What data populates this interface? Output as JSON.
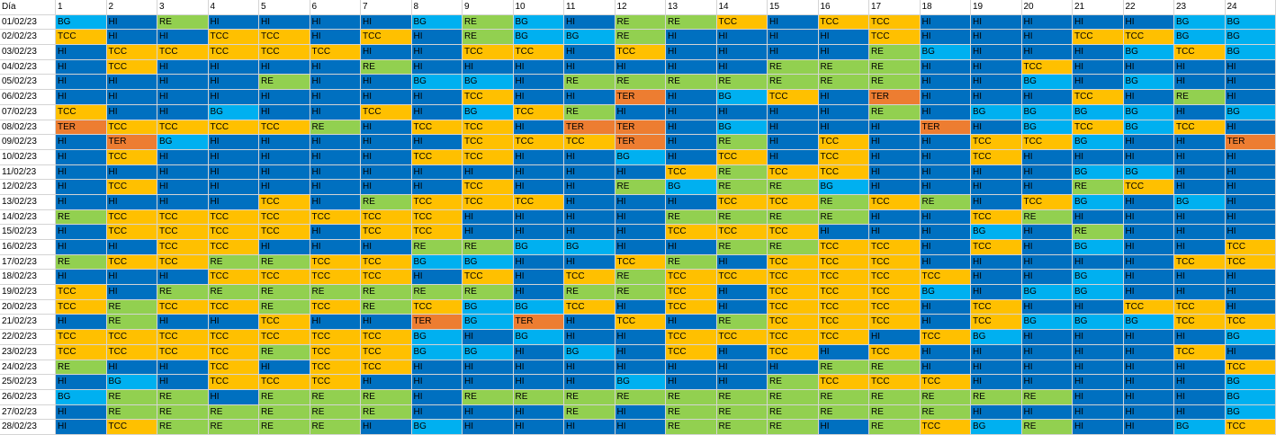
{
  "chart_data": {
    "type": "heatmap",
    "corner_label": "Día",
    "columns": [
      "1",
      "2",
      "3",
      "4",
      "5",
      "6",
      "7",
      "8",
      "9",
      "10",
      "11",
      "12",
      "13",
      "14",
      "15",
      "16",
      "17",
      "18",
      "19",
      "20",
      "21",
      "22",
      "23",
      "24"
    ],
    "colors": {
      "HI": "#0070c0",
      "BG": "#00b0f0",
      "TCC": "#ffc000",
      "RE": "#92d050",
      "TER": "#ed7d31"
    },
    "rows": [
      {
        "date": "01/02/23",
        "values": [
          "BG",
          "HI",
          "RE",
          "HI",
          "HI",
          "HI",
          "HI",
          "BG",
          "RE",
          "BG",
          "HI",
          "RE",
          "RE",
          "TCC",
          "HI",
          "TCC",
          "TCC",
          "HI",
          "HI",
          "HI",
          "HI",
          "HI",
          "BG",
          "BG"
        ]
      },
      {
        "date": "02/02/23",
        "values": [
          "TCC",
          "HI",
          "HI",
          "TCC",
          "TCC",
          "HI",
          "TCC",
          "HI",
          "RE",
          "BG",
          "BG",
          "RE",
          "HI",
          "HI",
          "HI",
          "HI",
          "TCC",
          "HI",
          "HI",
          "HI",
          "TCC",
          "TCC",
          "BG",
          "BG"
        ]
      },
      {
        "date": "03/02/23",
        "values": [
          "HI",
          "TCC",
          "TCC",
          "TCC",
          "TCC",
          "TCC",
          "HI",
          "HI",
          "TCC",
          "TCC",
          "HI",
          "TCC",
          "HI",
          "HI",
          "HI",
          "HI",
          "RE",
          "BG",
          "HI",
          "HI",
          "HI",
          "BG",
          "TCC",
          "BG"
        ]
      },
      {
        "date": "04/02/23",
        "values": [
          "HI",
          "TCC",
          "HI",
          "HI",
          "HI",
          "HI",
          "RE",
          "HI",
          "HI",
          "HI",
          "HI",
          "HI",
          "HI",
          "HI",
          "RE",
          "RE",
          "RE",
          "HI",
          "HI",
          "TCC",
          "HI",
          "HI",
          "HI",
          "HI"
        ]
      },
      {
        "date": "05/02/23",
        "values": [
          "HI",
          "HI",
          "HI",
          "HI",
          "RE",
          "HI",
          "HI",
          "BG",
          "BG",
          "HI",
          "RE",
          "RE",
          "RE",
          "RE",
          "RE",
          "RE",
          "RE",
          "HI",
          "HI",
          "BG",
          "HI",
          "BG",
          "HI",
          "HI"
        ]
      },
      {
        "date": "06/02/23",
        "values": [
          "HI",
          "HI",
          "HI",
          "HI",
          "HI",
          "HI",
          "HI",
          "HI",
          "TCC",
          "HI",
          "HI",
          "TER",
          "HI",
          "BG",
          "TCC",
          "HI",
          "TER",
          "HI",
          "HI",
          "HI",
          "TCC",
          "HI",
          "RE",
          "HI"
        ]
      },
      {
        "date": "07/02/23",
        "values": [
          "TCC",
          "HI",
          "HI",
          "BG",
          "HI",
          "HI",
          "TCC",
          "HI",
          "BG",
          "TCC",
          "RE",
          "HI",
          "HI",
          "HI",
          "HI",
          "HI",
          "RE",
          "HI",
          "BG",
          "BG",
          "BG",
          "BG",
          "HI",
          "BG"
        ]
      },
      {
        "date": "08/02/23",
        "values": [
          "TER",
          "TCC",
          "TCC",
          "TCC",
          "TCC",
          "RE",
          "HI",
          "TCC",
          "TCC",
          "HI",
          "TER",
          "TER",
          "HI",
          "BG",
          "HI",
          "HI",
          "HI",
          "TER",
          "HI",
          "BG",
          "TCC",
          "BG",
          "TCC",
          "HI"
        ]
      },
      {
        "date": "09/02/23",
        "values": [
          "HI",
          "TER",
          "BG",
          "HI",
          "HI",
          "HI",
          "HI",
          "HI",
          "TCC",
          "TCC",
          "TCC",
          "TER",
          "HI",
          "RE",
          "HI",
          "TCC",
          "HI",
          "HI",
          "TCC",
          "TCC",
          "BG",
          "HI",
          "HI",
          "TER"
        ]
      },
      {
        "date": "10/02/23",
        "values": [
          "HI",
          "TCC",
          "HI",
          "HI",
          "HI",
          "HI",
          "HI",
          "TCC",
          "TCC",
          "HI",
          "HI",
          "BG",
          "HI",
          "TCC",
          "HI",
          "TCC",
          "HI",
          "HI",
          "TCC",
          "HI",
          "HI",
          "HI",
          "HI",
          "HI"
        ]
      },
      {
        "date": "11/02/23",
        "values": [
          "HI",
          "HI",
          "HI",
          "HI",
          "HI",
          "HI",
          "HI",
          "HI",
          "HI",
          "HI",
          "HI",
          "HI",
          "TCC",
          "RE",
          "TCC",
          "TCC",
          "HI",
          "HI",
          "HI",
          "HI",
          "BG",
          "BG",
          "HI",
          "HI"
        ]
      },
      {
        "date": "12/02/23",
        "values": [
          "HI",
          "TCC",
          "HI",
          "HI",
          "HI",
          "HI",
          "HI",
          "HI",
          "TCC",
          "HI",
          "HI",
          "RE",
          "BG",
          "RE",
          "RE",
          "BG",
          "HI",
          "HI",
          "HI",
          "HI",
          "RE",
          "TCC",
          "HI",
          "HI"
        ]
      },
      {
        "date": "13/02/23",
        "values": [
          "HI",
          "HI",
          "HI",
          "HI",
          "TCC",
          "HI",
          "RE",
          "TCC",
          "TCC",
          "TCC",
          "HI",
          "HI",
          "HI",
          "TCC",
          "TCC",
          "RE",
          "TCC",
          "RE",
          "HI",
          "TCC",
          "BG",
          "HI",
          "BG",
          "HI"
        ]
      },
      {
        "date": "14/02/23",
        "values": [
          "RE",
          "TCC",
          "TCC",
          "TCC",
          "TCC",
          "TCC",
          "TCC",
          "TCC",
          "HI",
          "HI",
          "HI",
          "HI",
          "RE",
          "RE",
          "RE",
          "RE",
          "HI",
          "HI",
          "TCC",
          "RE",
          "HI",
          "HI",
          "HI",
          "HI"
        ]
      },
      {
        "date": "15/02/23",
        "values": [
          "HI",
          "TCC",
          "TCC",
          "TCC",
          "TCC",
          "HI",
          "TCC",
          "TCC",
          "HI",
          "HI",
          "HI",
          "HI",
          "TCC",
          "TCC",
          "TCC",
          "HI",
          "HI",
          "HI",
          "BG",
          "HI",
          "RE",
          "HI",
          "HI",
          "HI"
        ]
      },
      {
        "date": "16/02/23",
        "values": [
          "HI",
          "HI",
          "TCC",
          "TCC",
          "HI",
          "HI",
          "HI",
          "RE",
          "RE",
          "BG",
          "BG",
          "HI",
          "HI",
          "RE",
          "RE",
          "TCC",
          "TCC",
          "HI",
          "TCC",
          "HI",
          "BG",
          "HI",
          "HI",
          "TCC"
        ]
      },
      {
        "date": "17/02/23",
        "values": [
          "RE",
          "TCC",
          "TCC",
          "RE",
          "RE",
          "TCC",
          "TCC",
          "BG",
          "BG",
          "HI",
          "HI",
          "TCC",
          "RE",
          "HI",
          "TCC",
          "TCC",
          "TCC",
          "HI",
          "HI",
          "HI",
          "HI",
          "HI",
          "TCC",
          "TCC"
        ]
      },
      {
        "date": "18/02/23",
        "values": [
          "HI",
          "HI",
          "HI",
          "TCC",
          "TCC",
          "TCC",
          "TCC",
          "HI",
          "TCC",
          "HI",
          "TCC",
          "RE",
          "TCC",
          "TCC",
          "TCC",
          "TCC",
          "TCC",
          "TCC",
          "HI",
          "HI",
          "BG",
          "HI",
          "HI",
          "HI"
        ]
      },
      {
        "date": "19/02/23",
        "values": [
          "TCC",
          "HI",
          "RE",
          "RE",
          "RE",
          "RE",
          "RE",
          "RE",
          "RE",
          "HI",
          "RE",
          "RE",
          "TCC",
          "HI",
          "TCC",
          "TCC",
          "TCC",
          "BG",
          "HI",
          "BG",
          "BG",
          "HI",
          "HI",
          "HI"
        ]
      },
      {
        "date": "20/02/23",
        "values": [
          "TCC",
          "RE",
          "TCC",
          "TCC",
          "RE",
          "TCC",
          "RE",
          "TCC",
          "BG",
          "BG",
          "TCC",
          "HI",
          "TCC",
          "HI",
          "TCC",
          "TCC",
          "TCC",
          "HI",
          "TCC",
          "HI",
          "HI",
          "TCC",
          "TCC",
          "HI"
        ]
      },
      {
        "date": "21/02/23",
        "values": [
          "HI",
          "RE",
          "HI",
          "HI",
          "TCC",
          "HI",
          "HI",
          "TER",
          "BG",
          "TER",
          "HI",
          "TCC",
          "HI",
          "RE",
          "TCC",
          "TCC",
          "TCC",
          "HI",
          "TCC",
          "BG",
          "BG",
          "BG",
          "TCC",
          "TCC"
        ]
      },
      {
        "date": "22/02/23",
        "values": [
          "TCC",
          "TCC",
          "TCC",
          "TCC",
          "TCC",
          "TCC",
          "TCC",
          "BG",
          "HI",
          "BG",
          "HI",
          "HI",
          "TCC",
          "TCC",
          "TCC",
          "TCC",
          "HI",
          "TCC",
          "BG",
          "HI",
          "HI",
          "HI",
          "HI",
          "BG"
        ]
      },
      {
        "date": "23/02/23",
        "values": [
          "TCC",
          "TCC",
          "TCC",
          "TCC",
          "RE",
          "TCC",
          "TCC",
          "BG",
          "BG",
          "HI",
          "BG",
          "HI",
          "TCC",
          "HI",
          "TCC",
          "HI",
          "TCC",
          "HI",
          "HI",
          "HI",
          "HI",
          "HI",
          "TCC",
          "HI"
        ]
      },
      {
        "date": "24/02/23",
        "values": [
          "RE",
          "HI",
          "HI",
          "TCC",
          "HI",
          "TCC",
          "TCC",
          "HI",
          "HI",
          "HI",
          "HI",
          "HI",
          "HI",
          "HI",
          "HI",
          "RE",
          "RE",
          "HI",
          "HI",
          "HI",
          "HI",
          "HI",
          "HI",
          "TCC"
        ]
      },
      {
        "date": "25/02/23",
        "values": [
          "HI",
          "BG",
          "HI",
          "TCC",
          "TCC",
          "TCC",
          "HI",
          "HI",
          "HI",
          "HI",
          "HI",
          "BG",
          "HI",
          "HI",
          "RE",
          "TCC",
          "TCC",
          "TCC",
          "HI",
          "HI",
          "HI",
          "HI",
          "HI",
          "BG"
        ]
      },
      {
        "date": "26/02/23",
        "values": [
          "BG",
          "RE",
          "RE",
          "HI",
          "RE",
          "RE",
          "RE",
          "HI",
          "RE",
          "RE",
          "RE",
          "RE",
          "RE",
          "RE",
          "RE",
          "RE",
          "RE",
          "RE",
          "RE",
          "RE",
          "HI",
          "HI",
          "HI",
          "BG"
        ]
      },
      {
        "date": "27/02/23",
        "values": [
          "HI",
          "RE",
          "RE",
          "RE",
          "RE",
          "RE",
          "RE",
          "HI",
          "HI",
          "HI",
          "RE",
          "HI",
          "RE",
          "RE",
          "RE",
          "RE",
          "RE",
          "RE",
          "HI",
          "HI",
          "HI",
          "HI",
          "HI",
          "BG"
        ]
      },
      {
        "date": "28/02/23",
        "values": [
          "HI",
          "TCC",
          "RE",
          "RE",
          "RE",
          "RE",
          "HI",
          "BG",
          "HI",
          "HI",
          "HI",
          "HI",
          "RE",
          "RE",
          "RE",
          "HI",
          "RE",
          "TCC",
          "BG",
          "RE",
          "HI",
          "HI",
          "BG",
          "TCC"
        ]
      }
    ]
  }
}
